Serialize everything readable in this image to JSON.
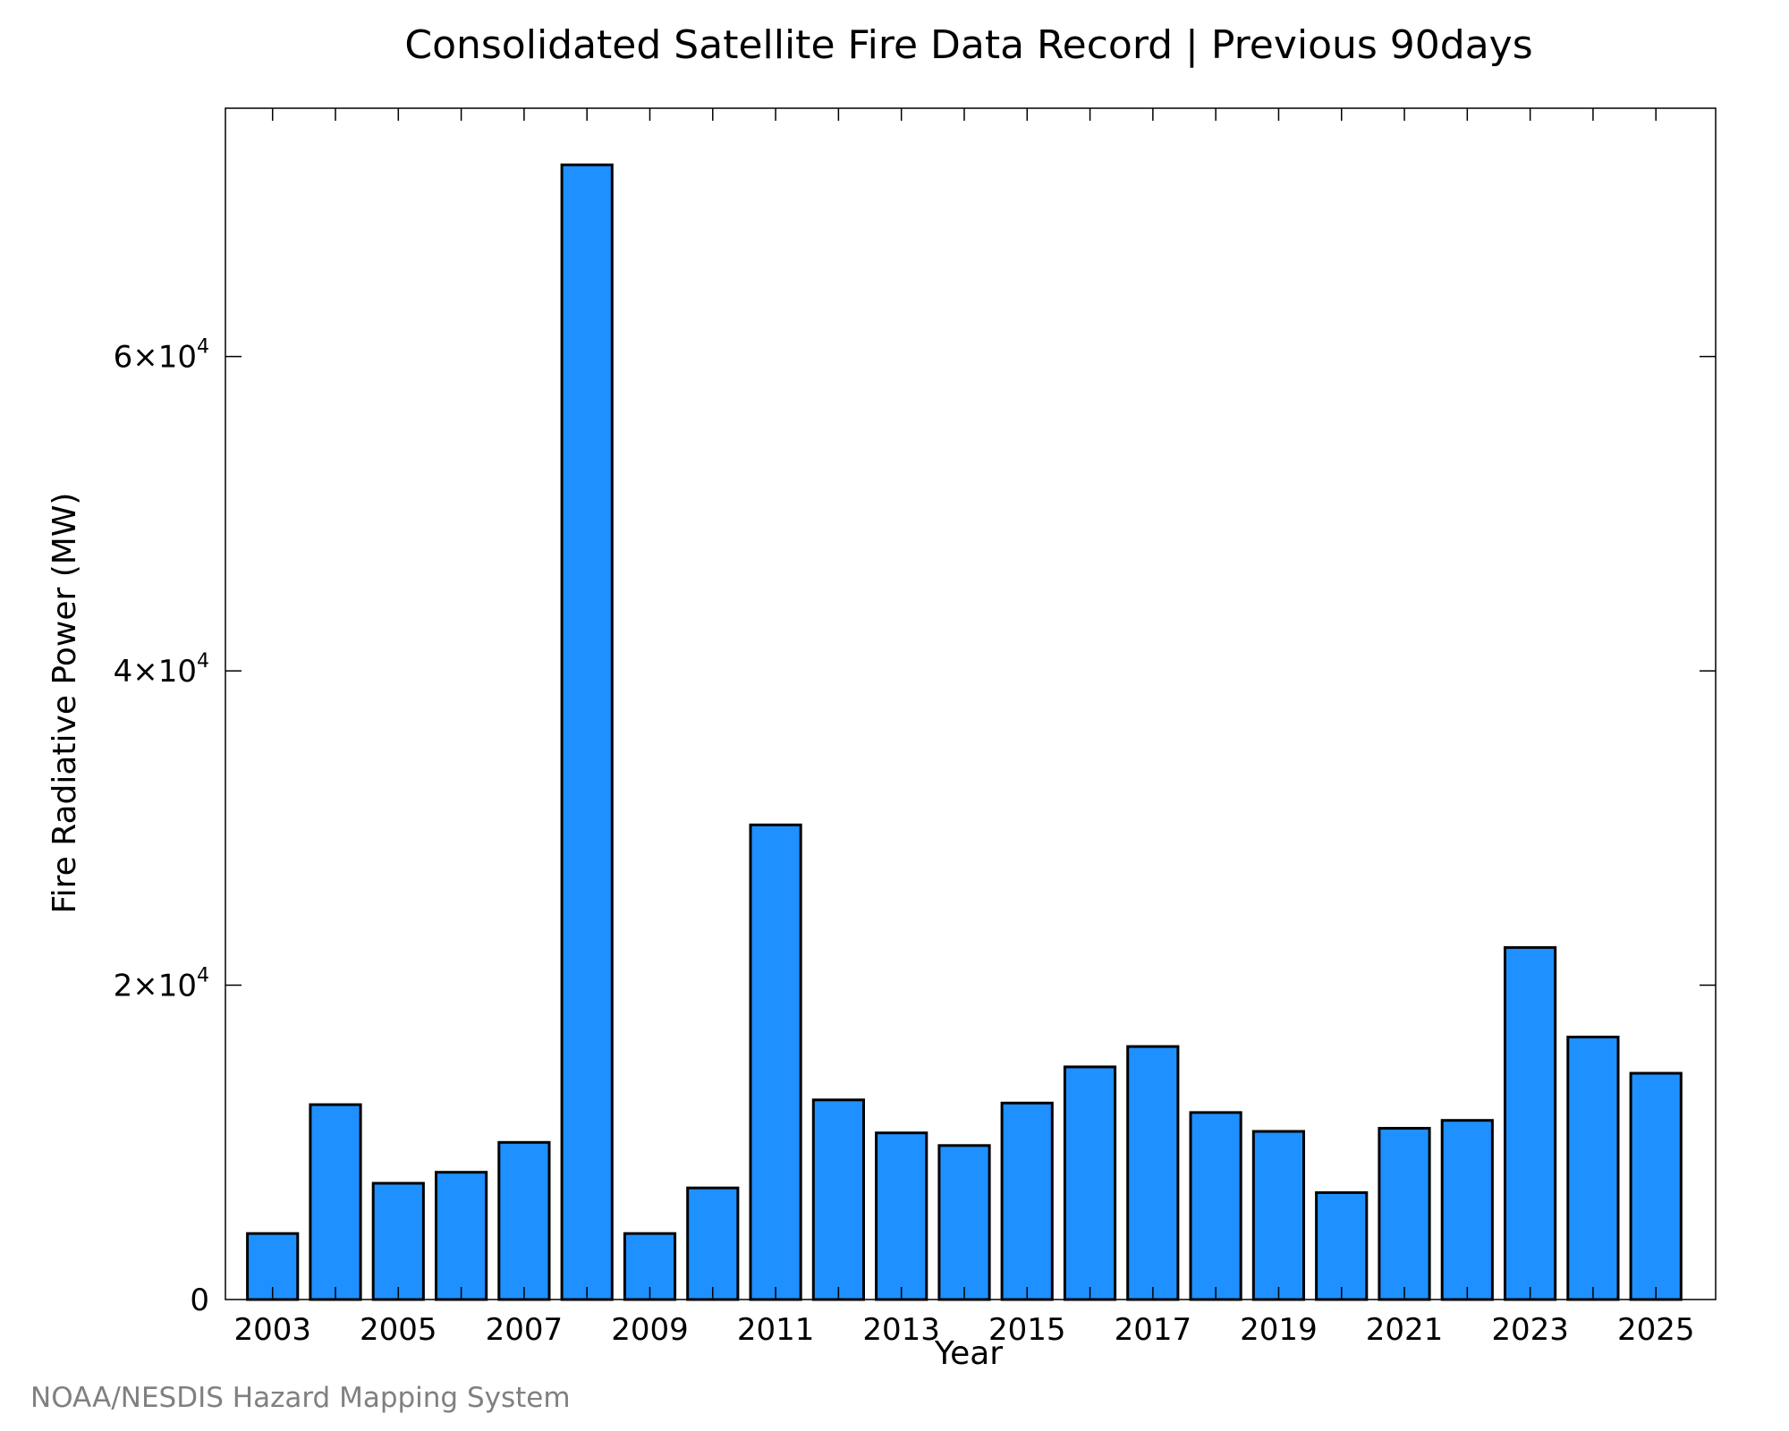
{
  "chart_data": {
    "type": "bar",
    "title": "Consolidated Satellite Fire Data Record | Previous 90days",
    "xlabel": "Year",
    "ylabel": "Fire Radiative Power (MW)",
    "categories": [
      "2003",
      "2004",
      "2005",
      "2006",
      "2007",
      "2008",
      "2009",
      "2010",
      "2011",
      "2012",
      "2013",
      "2014",
      "2015",
      "2016",
      "2017",
      "2018",
      "2019",
      "2020",
      "2021",
      "2022",
      "2023",
      "2024",
      "2025"
    ],
    "values": [
      4200,
      12400,
      7400,
      8100,
      10000,
      72200,
      4200,
      7100,
      30200,
      12700,
      10600,
      9800,
      12500,
      14800,
      16100,
      11900,
      10700,
      6800,
      10900,
      11400,
      22400,
      16700,
      14400
    ],
    "x_tick_labels": [
      "2003",
      "2005",
      "2007",
      "2009",
      "2011",
      "2013",
      "2015",
      "2017",
      "2019",
      "2021",
      "2023",
      "2025"
    ],
    "y_ticks": [
      {
        "value": 0,
        "mantissa": "0",
        "exponent": ""
      },
      {
        "value": 20000,
        "mantissa": "2×10",
        "exponent": "4"
      },
      {
        "value": 40000,
        "mantissa": "4×10",
        "exponent": "4"
      },
      {
        "value": 60000,
        "mantissa": "6×10",
        "exponent": "4"
      }
    ],
    "ylim": [
      0,
      75800
    ],
    "xlim": [
      2002.25,
      2025.95
    ],
    "grid": false,
    "legend": "none",
    "bar_color": "#1E90FF",
    "edge_color": "#000000",
    "credit": "NOAA/NESDIS Hazard Mapping System",
    "credit_color": "#808080"
  }
}
